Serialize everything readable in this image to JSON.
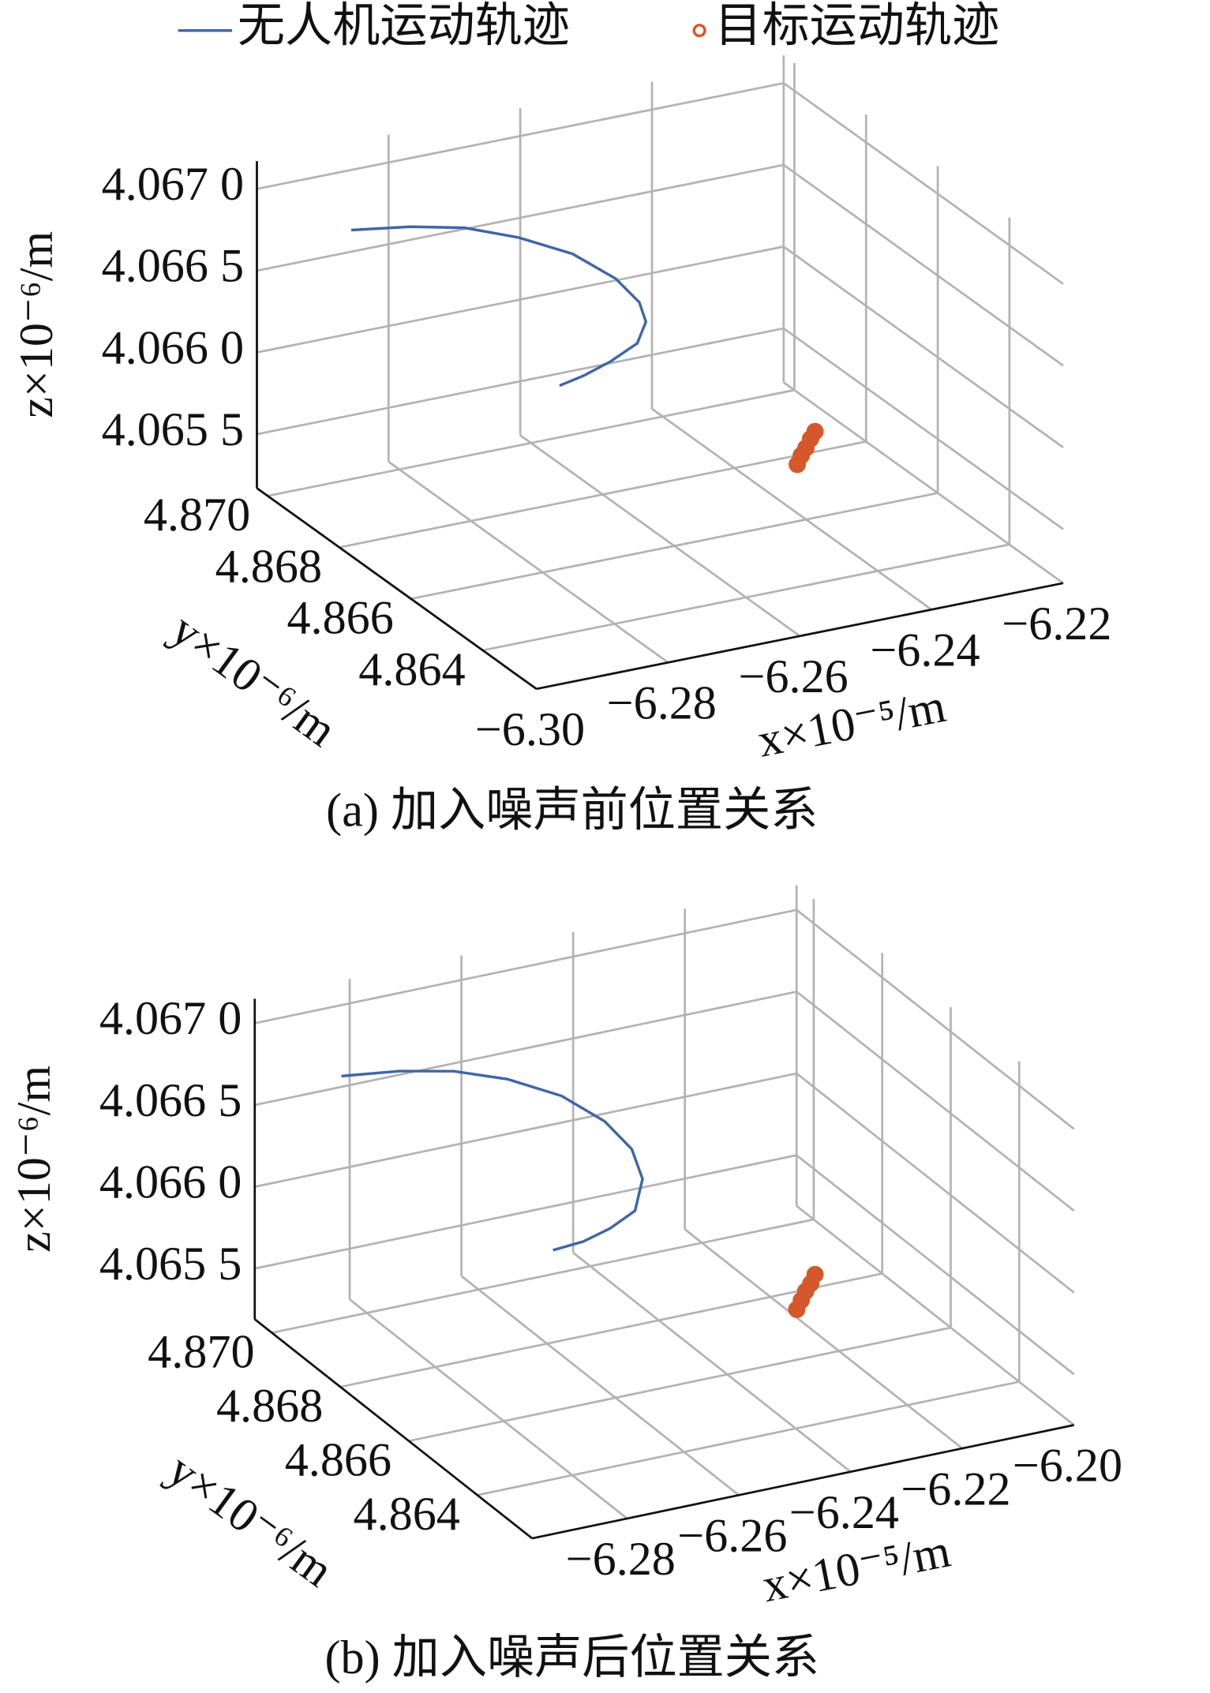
{
  "chart_data": [
    {
      "type": "line3d",
      "title": "(a) 加入噪声前位置关系",
      "legend": "top",
      "xlabel": "x×10⁻⁵/m",
      "ylabel": "y×10⁻⁶/m",
      "zlabel": "z×10⁻⁶/m",
      "xlim": [
        -6.3,
        -6.22
      ],
      "ylim": [
        4.8625,
        4.8703
      ],
      "zlim": [
        4.06517,
        4.06717
      ],
      "xticks": [
        {
          "value": -6.3,
          "label": "−6.30"
        },
        {
          "value": -6.28,
          "label": "−6.28"
        },
        {
          "value": -6.26,
          "label": "−6.26"
        },
        {
          "value": -6.24,
          "label": "−6.24"
        },
        {
          "value": -6.22,
          "label": "−6.22"
        }
      ],
      "yticks": [
        {
          "value": 4.87,
          "label": "4.870"
        },
        4.868,
        4.866,
        4.864
      ],
      "zticks": [
        {
          "value": 4.067,
          "label": "4.067 0"
        },
        {
          "value": 4.0665,
          "label": "4.066 5"
        },
        {
          "value": 4.066,
          "label": "4.066 0"
        },
        {
          "value": 4.0655,
          "label": "4.065 5"
        }
      ],
      "grid": true,
      "series": [
        {
          "name": "无人机运动轨迹",
          "kind": "line",
          "color": "#3f66a8",
          "x": [
            -6.2982,
            -6.28918,
            -6.28098,
            -6.27279,
            -6.26459,
            -6.25803,
            -6.25443,
            -6.25344,
            -6.25475,
            -6.25885,
            -6.26295,
            -6.26656
          ],
          "y": [
            4.868,
            4.868,
            4.868,
            4.868,
            4.868,
            4.868,
            4.868,
            4.868,
            4.868,
            4.868,
            4.868,
            4.868
          ],
          "z": [
            4.067096,
            4.067043,
            4.06697,
            4.066845,
            4.066679,
            4.066474,
            4.0663,
            4.066173,
            4.066052,
            4.065973,
            4.065919,
            4.065889
          ]
        },
        {
          "name": "目标运动轨迹",
          "kind": "scatter",
          "color": "#d4582a",
          "x": [
            -6.236,
            -6.2354,
            -6.2347,
            -6.234,
            -6.2333
          ],
          "y": [
            4.86698,
            4.86698,
            4.86698,
            4.86698,
            4.86698
          ],
          "z": [
            4.06532,
            4.06537,
            4.06541,
            4.06546,
            4.0655
          ]
        }
      ]
    },
    {
      "type": "line3d",
      "title": "(b) 加入噪声后位置关系",
      "xlabel": "x×10⁻⁵/m",
      "ylabel": "y×10⁻⁶/m",
      "zlabel": "z×10⁻⁶/m",
      "xlim": [
        -6.297,
        -6.2
      ],
      "ylim": [
        4.8624,
        4.8705
      ],
      "zlim": [
        4.06519,
        4.06715
      ],
      "xticks": [
        {
          "value": -6.28,
          "label": "−6.28"
        },
        {
          "value": -6.26,
          "label": "−6.26"
        },
        {
          "value": -6.24,
          "label": "−6.24"
        },
        {
          "value": -6.22,
          "label": "−6.22"
        },
        {
          "value": -6.2,
          "label": "−6.20"
        }
      ],
      "yticks": [
        {
          "value": 4.87,
          "label": "4.870"
        },
        4.868,
        4.866,
        4.864
      ],
      "zticks": [
        {
          "value": 4.067,
          "label": "4.067 0"
        },
        {
          "value": 4.0665,
          "label": "4.066 5"
        },
        {
          "value": 4.066,
          "label": "4.066 0"
        },
        {
          "value": 4.0655,
          "label": "4.065 5"
        }
      ],
      "grid": true,
      "series": [
        {
          "kind": "line",
          "color": "#3f66a8",
          "x": [
            -6.29681,
            -6.28637,
            -6.27671,
            -6.26705,
            -6.25739,
            -6.24966,
            -6.24483,
            -6.2429,
            -6.24425,
            -6.24869,
            -6.25352,
            -6.25894
          ],
          "y": [
            4.868,
            4.868,
            4.868,
            4.868,
            4.868,
            4.868,
            4.868,
            4.868,
            4.868,
            4.868,
            4.868,
            4.868
          ],
          "z": [
            4.067089,
            4.067045,
            4.066975,
            4.066857,
            4.066686,
            4.066475,
            4.066271,
            4.066075,
            4.06589,
            4.065814,
            4.065768,
            4.065754
          ]
        },
        {
          "kind": "scatter",
          "color": "#d4582a",
          "x": [
            -6.2194,
            -6.2186,
            -6.2178,
            -6.2169,
            -6.21613
          ],
          "y": [
            4.86733,
            4.86733,
            4.86733,
            4.86733,
            4.86733
          ],
          "z": [
            4.06522,
            4.06527,
            4.06532,
            4.06536,
            4.06541
          ]
        }
      ]
    }
  ]
}
